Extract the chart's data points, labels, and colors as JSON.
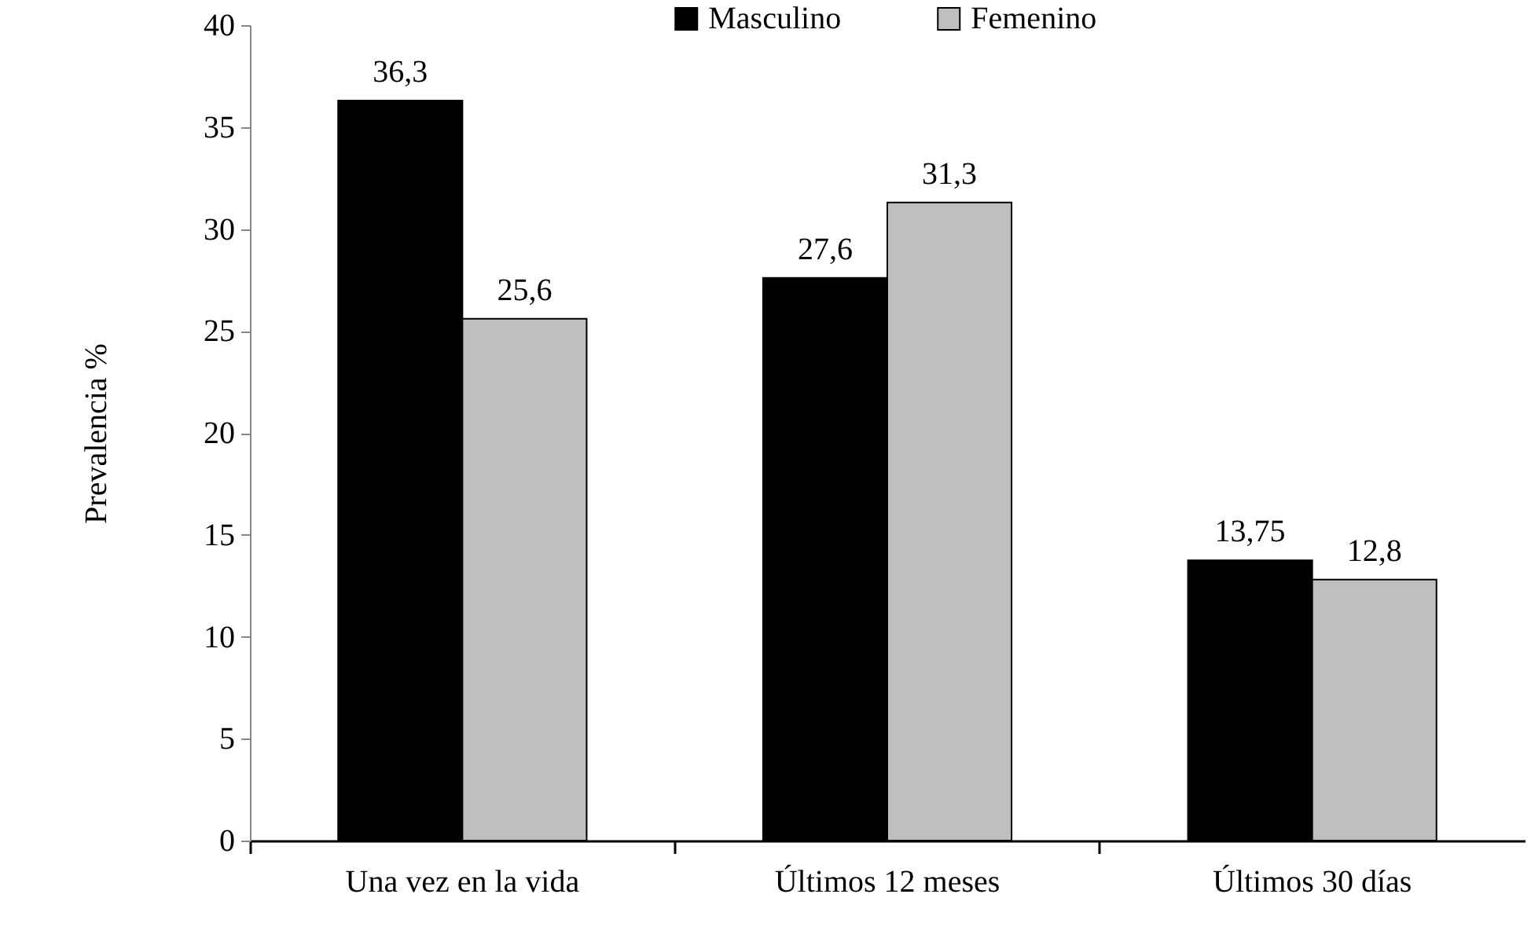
{
  "chart_data": {
    "type": "bar",
    "ylabel": "Prevalencia  %",
    "categories": [
      "Una vez en la vida",
      "Últimos 12 meses",
      "Últimos 30 días"
    ],
    "series": [
      {
        "name": "Masculino",
        "color": "#000000",
        "values": [
          36.3,
          27.6,
          13.75
        ],
        "value_labels": [
          "36,3",
          "27,6",
          "13,75"
        ]
      },
      {
        "name": "Femenino",
        "color": "#bfbfbf",
        "values": [
          25.6,
          31.3,
          12.8
        ],
        "value_labels": [
          "25,6",
          "31,3",
          "12,8"
        ]
      }
    ],
    "ylim": [
      0,
      40
    ],
    "yticks": [
      0,
      5,
      10,
      15,
      20,
      25,
      30,
      35,
      40
    ],
    "legend": "top",
    "grid": false
  }
}
